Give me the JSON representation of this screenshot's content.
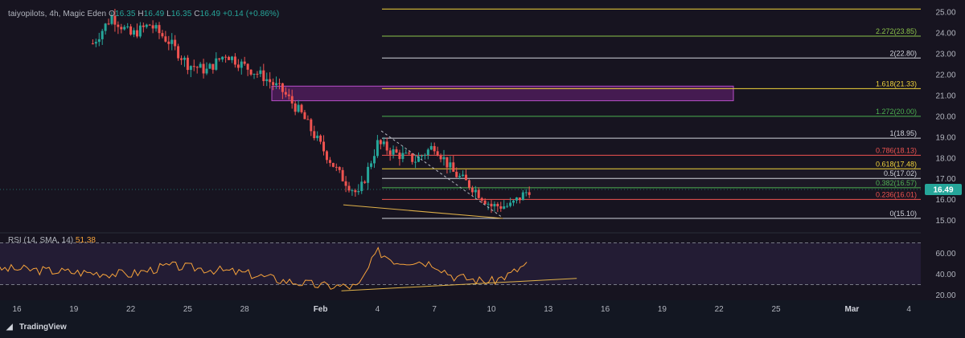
{
  "header": {
    "symbol": "taiyopilots, 4h, Magic Eden",
    "open_label": "O",
    "open": "16.35",
    "high_label": "H",
    "high": "16.49",
    "low_label": "L",
    "low": "16.35",
    "close_label": "C",
    "close": "16.49",
    "change": "+0.14 (+0.86%)"
  },
  "rsi": {
    "label": "RSI (14, SMA, 14)",
    "value": "51.38",
    "axis_ticks": [
      "60.00",
      "40.00",
      "20.00"
    ],
    "line_color": "#f7a33b",
    "band_upper": 70,
    "band_lower": 30
  },
  "price_axis": {
    "ticks": [
      "25.00",
      "24.00",
      "23.00",
      "22.00",
      "21.00",
      "20.00",
      "19.00",
      "18.00",
      "17.00",
      "16.00",
      "15.00"
    ],
    "current_price": "16.49",
    "current_price_color": "#26a69a"
  },
  "x_axis": {
    "ticks": [
      "16",
      "19",
      "22",
      "25",
      "28",
      "Feb",
      "4",
      "7",
      "10",
      "13",
      "16",
      "19",
      "22",
      "25",
      "Mar",
      "4"
    ]
  },
  "fib_levels": [
    {
      "label": "2.272(23.85)",
      "price": 23.85,
      "color": "#8bc34a"
    },
    {
      "label": "2(22.80)",
      "price": 22.8,
      "color": "#d1d4dc"
    },
    {
      "label": "1.618(21.33)",
      "price": 21.33,
      "color": "#f2d43b"
    },
    {
      "label": "1.272(20.00)",
      "price": 20.0,
      "color": "#4caf50"
    },
    {
      "label": "1(18.95)",
      "price": 18.95,
      "color": "#d1d4dc"
    },
    {
      "label": "0.786(18.13)",
      "price": 18.13,
      "color": "#ef5350"
    },
    {
      "label": "0.618(17.48)",
      "price": 17.48,
      "color": "#f2d43b"
    },
    {
      "label": "0.5(17.02)",
      "price": 17.02,
      "color": "#d1d4dc"
    },
    {
      "label": "0.382(16.57)",
      "price": 16.57,
      "color": "#4caf50"
    },
    {
      "label": "0.236(16.01)",
      "price": 16.01,
      "color": "#ef5350"
    },
    {
      "label": "0(15.10)",
      "price": 15.1,
      "color": "#d1d4dc"
    }
  ],
  "colors": {
    "up": "#26a69a",
    "down": "#ef5350",
    "zone": "#9c27b0"
  },
  "chart_data": {
    "type": "candlestick",
    "interval": "4h",
    "ylim": [
      14.6,
      25.2
    ],
    "supply_zone": {
      "low": 20.75,
      "high": 21.45
    },
    "price_path": [
      [
        "Jan 20",
        23.5
      ],
      [
        "Jan 21",
        24.8
      ],
      [
        "Jan 22",
        23.9
      ],
      [
        "Jan 23",
        24.4
      ],
      [
        "Jan 24",
        23.6
      ],
      [
        "Jan 25",
        22.5
      ],
      [
        "Jan 26",
        22.2
      ],
      [
        "Jan 27",
        23.0
      ],
      [
        "Jan 28",
        22.4
      ],
      [
        "Jan 29",
        21.9
      ],
      [
        "Jan 30",
        21.2
      ],
      [
        "Jan 31",
        20.1
      ],
      [
        "Feb 1",
        18.6
      ],
      [
        "Feb 2",
        17.2
      ],
      [
        "Feb 3",
        16.2
      ],
      [
        "Feb 4",
        18.7
      ],
      [
        "Feb 5",
        18.2
      ],
      [
        "Feb 6",
        17.9
      ],
      [
        "Feb 7",
        18.6
      ],
      [
        "Feb 8",
        17.3
      ],
      [
        "Feb 9",
        16.6
      ],
      [
        "Feb 10",
        15.7
      ],
      [
        "Feb 11",
        15.7
      ],
      [
        "Feb 12",
        16.49
      ]
    ],
    "rsi_path": [
      [
        "Jan 16",
        45
      ],
      [
        "Jan 19",
        42
      ],
      [
        "Jan 22",
        40
      ],
      [
        "Jan 24",
        48
      ],
      [
        "Jan 26",
        45
      ],
      [
        "Jan 28",
        41
      ],
      [
        "Jan 30",
        34
      ],
      [
        "Feb 1",
        29
      ],
      [
        "Feb 3",
        28
      ],
      [
        "Feb 4",
        62
      ],
      [
        "Feb 5",
        52
      ],
      [
        "Feb 6",
        53
      ],
      [
        "Feb 7",
        50
      ],
      [
        "Feb 8",
        38
      ],
      [
        "Feb 9",
        35
      ],
      [
        "Feb 10",
        33
      ],
      [
        "Feb 11",
        40
      ],
      [
        "Feb 12",
        51.38
      ]
    ]
  }
}
